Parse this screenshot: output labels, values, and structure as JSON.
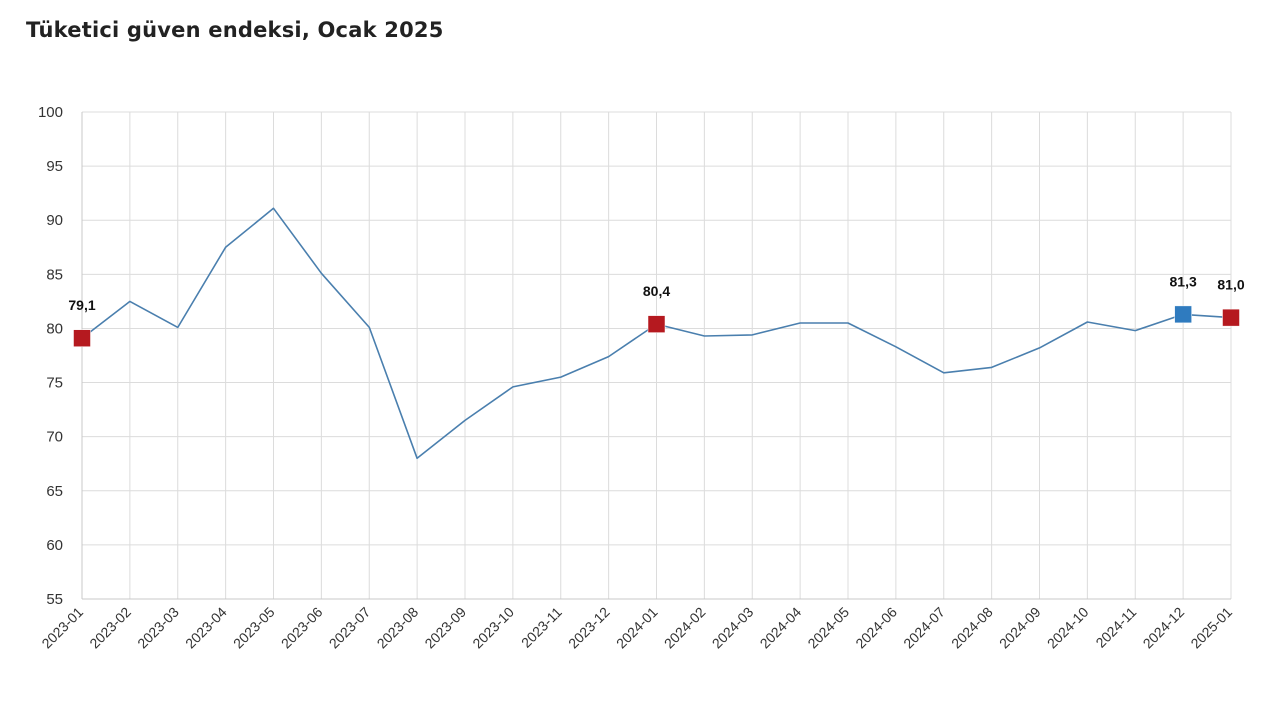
{
  "chart_data": {
    "type": "line",
    "title": "Tüketici güven endeksi, Ocak 2025",
    "xlabel": "",
    "ylabel": "",
    "ylim": [
      55,
      100
    ],
    "yticks": [
      "100",
      "95",
      "90",
      "85",
      "80",
      "75",
      "70",
      "65",
      "60",
      "55"
    ],
    "grid": true,
    "categories": [
      "2023-01",
      "2023-02",
      "2023-03",
      "2023-04",
      "2023-05",
      "2023-06",
      "2023-07",
      "2023-08",
      "2023-09",
      "2023-10",
      "2023-11",
      "2023-12",
      "2024-01",
      "2024-02",
      "2024-03",
      "2024-04",
      "2024-05",
      "2024-06",
      "2024-07",
      "2024-08",
      "2024-09",
      "2024-10",
      "2024-11",
      "2024-12",
      "2025-01"
    ],
    "series": [
      {
        "values": [
          79.1,
          82.5,
          80.1,
          87.5,
          91.1,
          85.1,
          80.1,
          68.0,
          71.5,
          74.6,
          75.5,
          77.4,
          80.4,
          79.3,
          79.4,
          80.5,
          80.5,
          78.3,
          75.9,
          76.4,
          78.2,
          80.6,
          79.8,
          81.3,
          81.0
        ],
        "color": "#4a7fae"
      }
    ],
    "highlights": [
      {
        "index": 0,
        "label": "79,1",
        "color": "#b5191f"
      },
      {
        "index": 12,
        "label": "80,4",
        "color": "#b5191f"
      },
      {
        "index": 23,
        "label": "81,3",
        "color": "#2f7bbf"
      },
      {
        "index": 24,
        "label": "81,0",
        "color": "#b5191f"
      }
    ]
  }
}
